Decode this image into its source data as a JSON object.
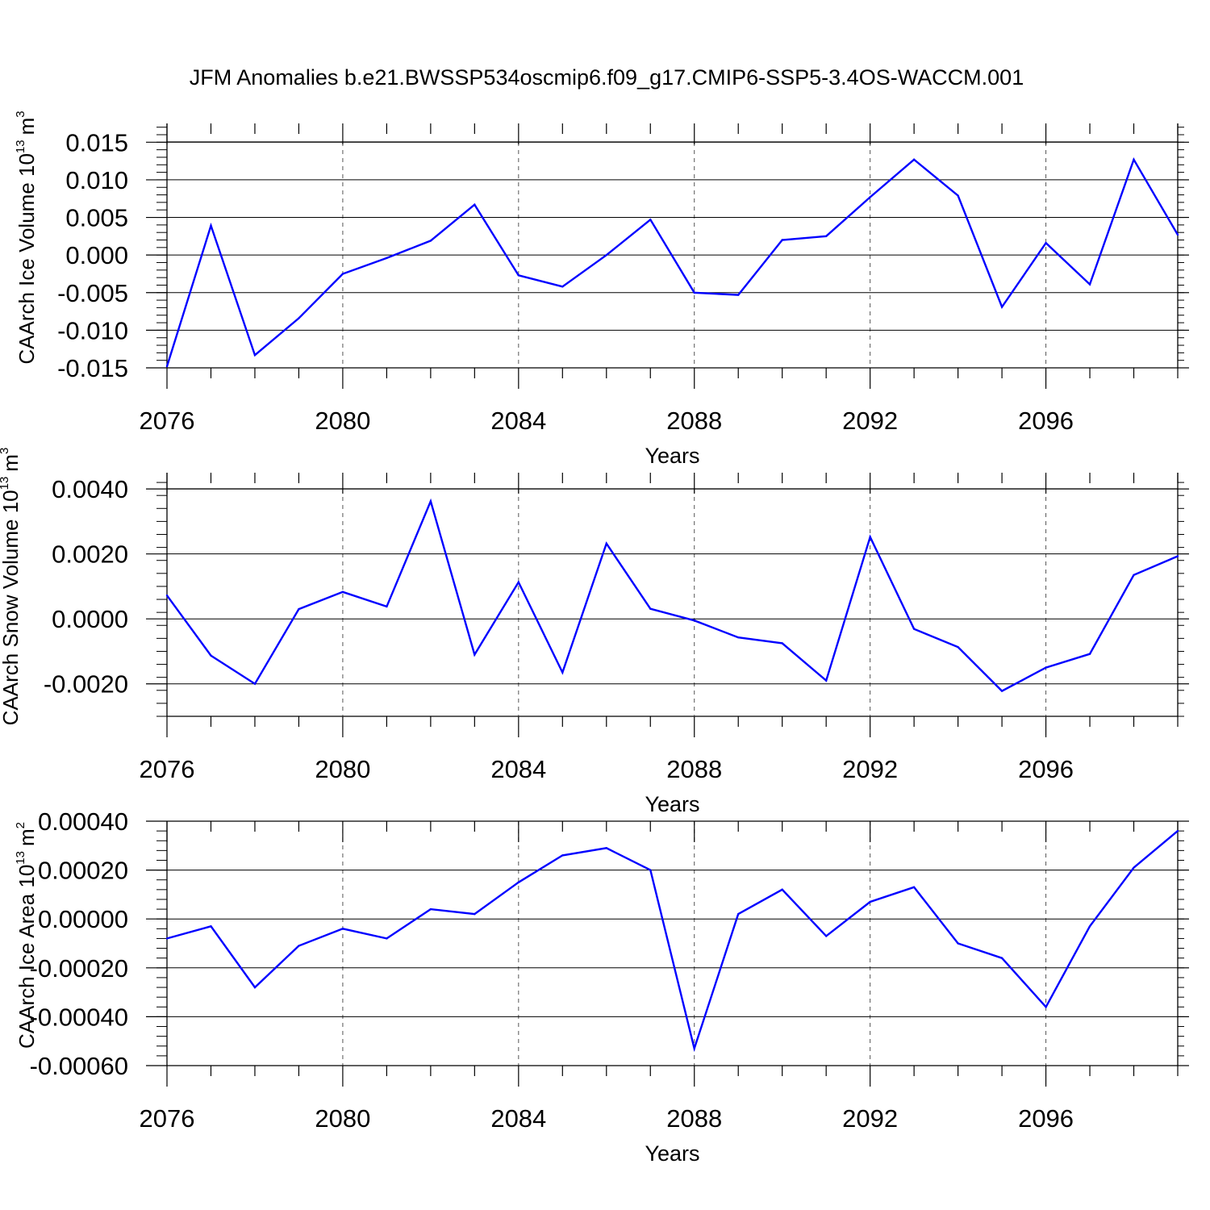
{
  "title": "JFM Anomalies b.e21.BWSSP534oscmip6.f09_g17.CMIP6-SSP5-3.4OS-WACCM.001",
  "chart_data": [
    {
      "type": "line",
      "ylabel": "CAArch Ice Volume 10",
      "ylabel_exp": "13",
      "ylabel_unit": "m",
      "ylabel_unit_exp": "3",
      "xlabel": "Years",
      "line_color": "#0000ff",
      "xlim": [
        2076,
        2099
      ],
      "ylim": [
        -0.015,
        0.0175
      ],
      "yticks": [
        -0.015,
        -0.01,
        -0.005,
        0.0,
        0.005,
        0.01,
        0.015
      ],
      "ytick_labels": [
        "-0.015",
        "-0.010",
        "-0.005",
        "0.000",
        "0.005",
        "0.010",
        "0.015"
      ],
      "xticks": [
        2076,
        2080,
        2084,
        2088,
        2092,
        2096
      ],
      "xtick_labels": [
        "2076",
        "2080",
        "2084",
        "2088",
        "2092",
        "2096"
      ],
      "x": [
        2076,
        2077,
        2078,
        2079,
        2080,
        2081,
        2082,
        2083,
        2084,
        2085,
        2086,
        2087,
        2088,
        2089,
        2090,
        2091,
        2092,
        2093,
        2094,
        2095,
        2096,
        2097,
        2098,
        2099
      ],
      "values": [
        -0.0148,
        0.0039,
        -0.0133,
        -0.0084,
        -0.0025,
        -0.0004,
        0.0019,
        0.0067,
        -0.0027,
        -0.0042,
        0.0,
        0.0047,
        -0.005,
        -0.0053,
        0.002,
        0.0025,
        0.0077,
        0.0127,
        0.0079,
        -0.0069,
        0.0016,
        -0.0039,
        0.0127,
        0.0027
      ]
    },
    {
      "type": "line",
      "ylabel": "CAArch Snow Volume 10",
      "ylabel_exp": "13",
      "ylabel_unit": "m",
      "ylabel_unit_exp": "3",
      "xlabel": "Years",
      "line_color": "#0000ff",
      "xlim": [
        2076,
        2099
      ],
      "ylim": [
        -0.003,
        0.0045
      ],
      "yticks": [
        -0.002,
        0.0,
        0.002,
        0.004
      ],
      "ytick_labels": [
        "-0.0020",
        "0.0000",
        "0.0020",
        "0.0040"
      ],
      "xticks": [
        2076,
        2080,
        2084,
        2088,
        2092,
        2096
      ],
      "xtick_labels": [
        "2076",
        "2080",
        "2084",
        "2088",
        "2092",
        "2096"
      ],
      "x": [
        2076,
        2077,
        2078,
        2079,
        2080,
        2081,
        2082,
        2083,
        2084,
        2085,
        2086,
        2087,
        2088,
        2089,
        2090,
        2091,
        2092,
        2093,
        2094,
        2095,
        2096,
        2097,
        2098,
        2099
      ],
      "values": [
        0.00072,
        -0.00113,
        -0.002,
        0.0003,
        0.00083,
        0.00038,
        0.00362,
        -0.0011,
        0.00113,
        -0.00165,
        0.00232,
        0.00031,
        -5e-05,
        -0.00057,
        -0.00075,
        -0.0019,
        0.00252,
        -0.00031,
        -0.00087,
        -0.00222,
        -0.0015,
        -0.00108,
        0.00135,
        0.00193
      ]
    },
    {
      "type": "line",
      "ylabel": "CAArch Ice Area 10",
      "ylabel_exp": "13",
      "ylabel_unit": "m",
      "ylabel_unit_exp": "2",
      "xlabel": "Years",
      "line_color": "#0000ff",
      "xlim": [
        2076,
        2099
      ],
      "ylim": [
        -0.0006,
        0.0004
      ],
      "yticks": [
        -0.0006,
        -0.0004,
        -0.0002,
        0.0,
        0.0002,
        0.0004
      ],
      "ytick_labels": [
        "-0.00060",
        "-0.00040",
        "-0.00020",
        "0.00000",
        "0.00020",
        "0.00040"
      ],
      "xticks": [
        2076,
        2080,
        2084,
        2088,
        2092,
        2096
      ],
      "xtick_labels": [
        "2076",
        "2080",
        "2084",
        "2088",
        "2092",
        "2096"
      ],
      "x": [
        2076,
        2077,
        2078,
        2079,
        2080,
        2081,
        2082,
        2083,
        2084,
        2085,
        2086,
        2087,
        2088,
        2089,
        2090,
        2091,
        2092,
        2093,
        2094,
        2095,
        2096,
        2097,
        2098,
        2099
      ],
      "values": [
        -8e-05,
        -3e-05,
        -0.00028,
        -0.00011,
        -4e-05,
        -8e-05,
        4e-05,
        2e-05,
        0.00015,
        0.00026,
        0.00029,
        0.0002,
        -0.00053,
        2e-05,
        0.00012,
        -7e-05,
        7e-05,
        0.00013,
        -0.0001,
        -0.00016,
        -0.00036,
        -3e-05,
        0.00021,
        0.00036
      ]
    }
  ]
}
